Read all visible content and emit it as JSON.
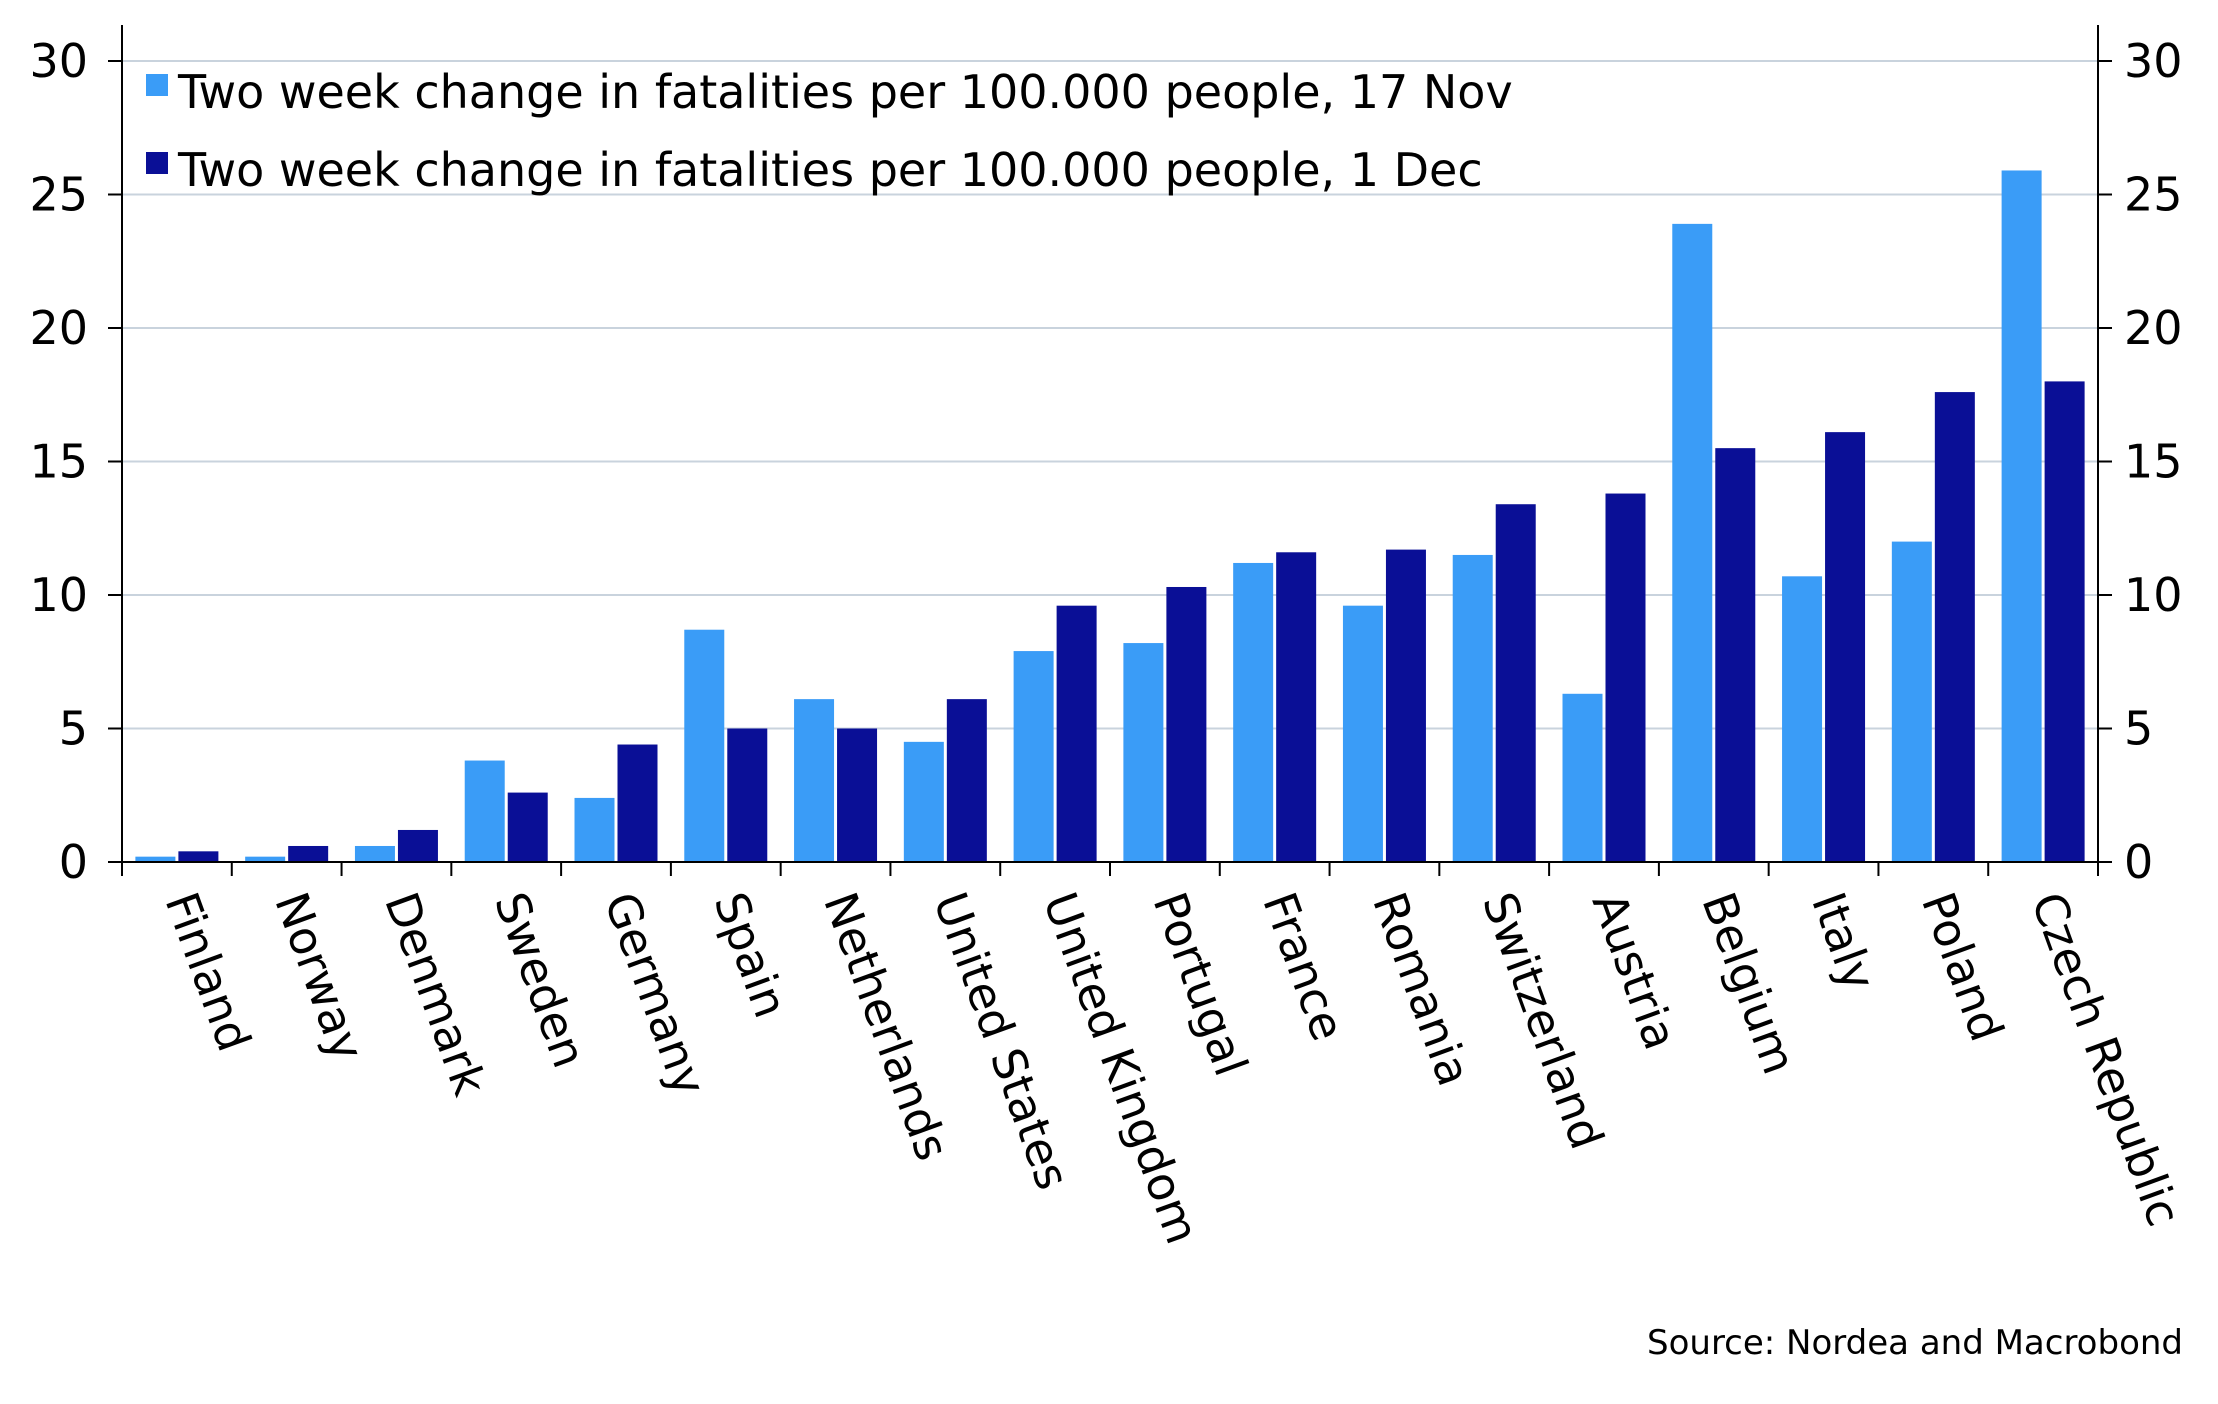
{
  "chart_data": {
    "type": "bar",
    "categories": [
      "Finland",
      "Norway",
      "Denmark",
      "Sweden",
      "Germany",
      "Spain",
      "Netherlands",
      "United States",
      "United Kingdom",
      "Portugal",
      "France",
      "Romania",
      "Switzerland",
      "Austria",
      "Belgium",
      "Italy",
      "Poland",
      "Czech Republic"
    ],
    "series": [
      {
        "name": "Two week change in fatalities per 100.000 people, 17 Nov",
        "color": "#3a9cf7",
        "values": [
          0.2,
          0.2,
          0.6,
          3.8,
          2.4,
          8.7,
          6.1,
          4.5,
          7.9,
          8.2,
          11.2,
          9.6,
          11.5,
          6.3,
          23.9,
          10.7,
          12.0,
          25.9
        ]
      },
      {
        "name": "Two week change in fatalities per 100.000 people, 1 Dec",
        "color": "#0a0f96",
        "values": [
          0.4,
          0.6,
          1.2,
          2.6,
          4.4,
          5.0,
          5.0,
          6.1,
          9.6,
          10.3,
          11.6,
          11.7,
          13.4,
          13.8,
          15.5,
          16.1,
          17.6,
          18.0
        ]
      }
    ],
    "ylim": [
      0,
      30
    ],
    "yticks": [
      0,
      5,
      10,
      15,
      20,
      25,
      30
    ],
    "y_axis_sides": [
      "left",
      "right"
    ],
    "grid": true,
    "legend_position": "top-left",
    "source": "Source: Nordea and Macrobond"
  }
}
